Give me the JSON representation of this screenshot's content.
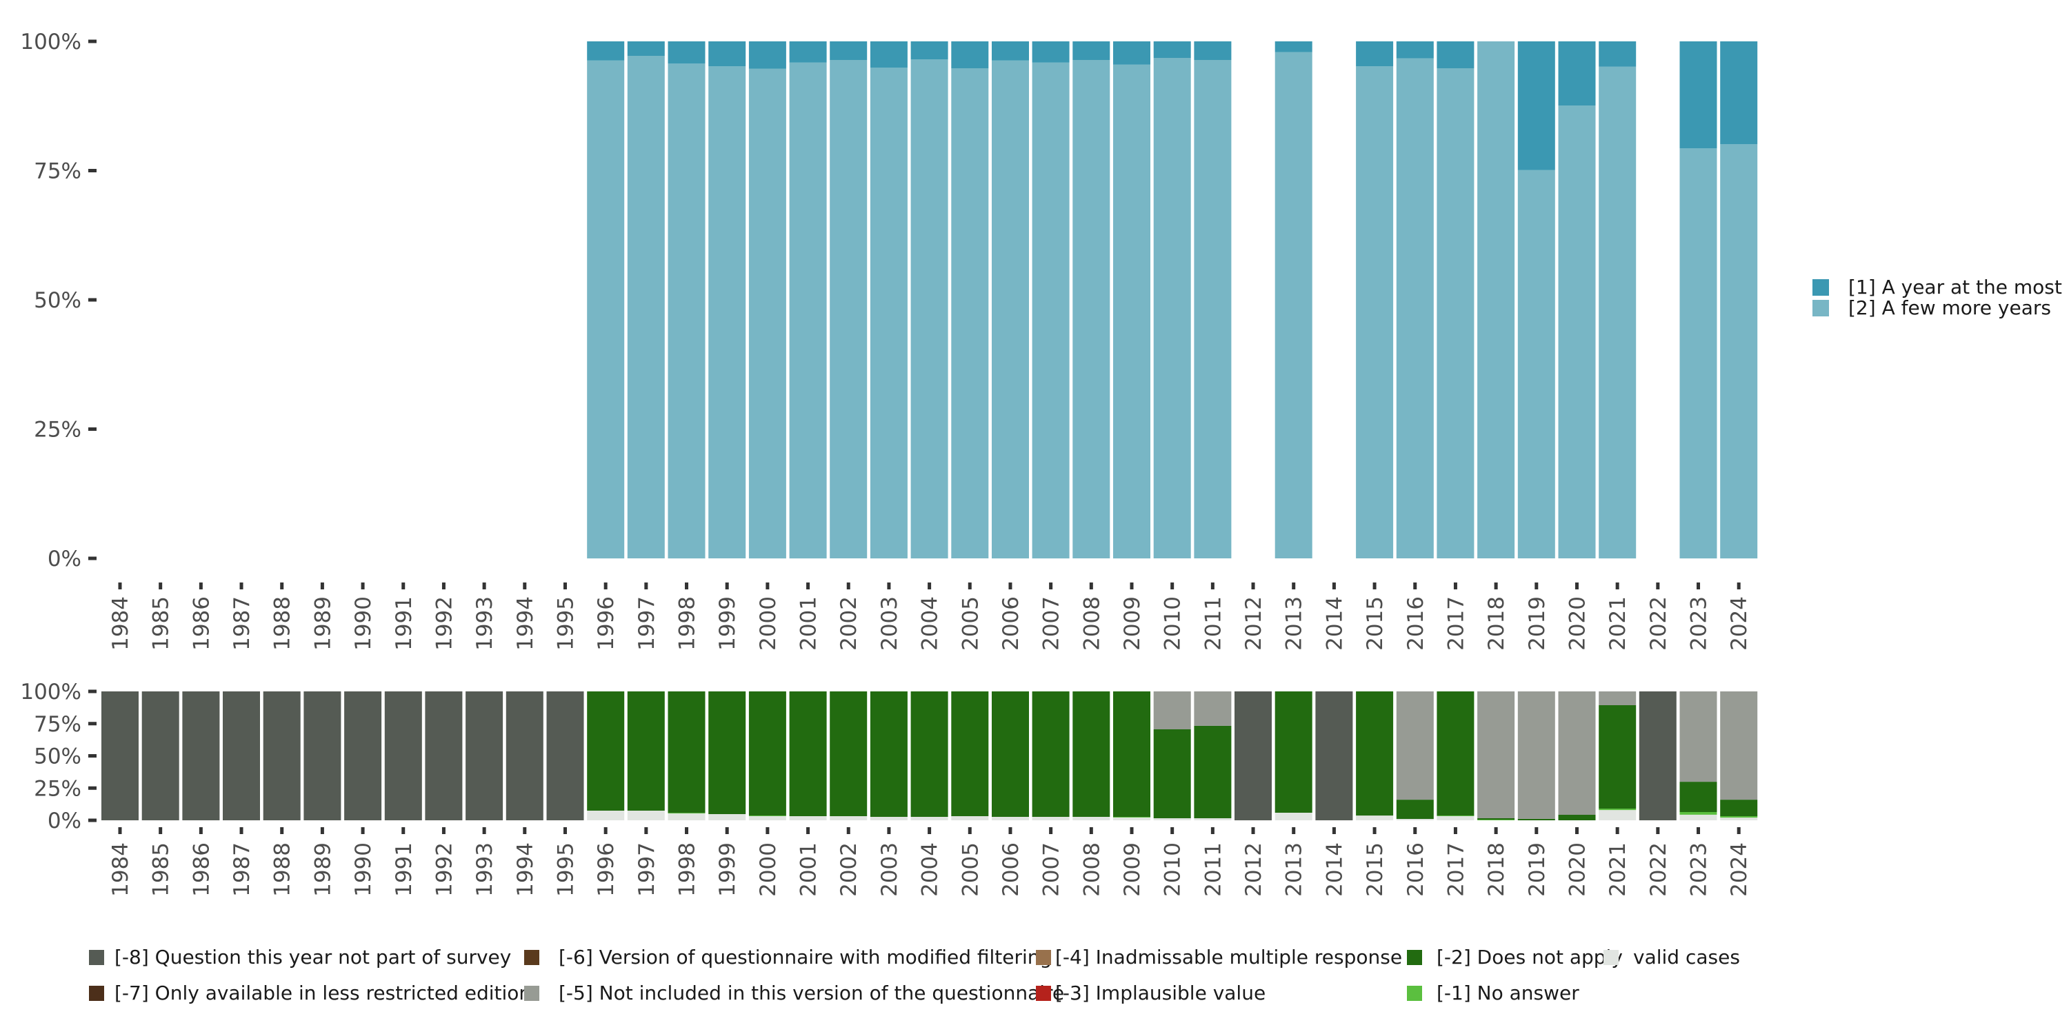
{
  "chart_data": [
    {
      "id": "top",
      "type": "bar",
      "stacked": true,
      "normalized": true,
      "title": "",
      "xlabel": "",
      "ylabel": "",
      "ylim": [
        0,
        100
      ],
      "yticks": [
        "0%",
        "25%",
        "50%",
        "75%",
        "100%"
      ],
      "ytick_values": [
        0,
        25,
        50,
        75,
        100
      ],
      "grid": false,
      "legend_position": "right",
      "categories": [
        "1984",
        "1985",
        "1986",
        "1987",
        "1988",
        "1989",
        "1990",
        "1991",
        "1992",
        "1993",
        "1994",
        "1995",
        "1996",
        "1997",
        "1998",
        "1999",
        "2000",
        "2001",
        "2002",
        "2003",
        "2004",
        "2005",
        "2006",
        "2007",
        "2008",
        "2009",
        "2010",
        "2011",
        "2012",
        "2013",
        "2014",
        "2015",
        "2016",
        "2017",
        "2018",
        "2019",
        "2020",
        "2021",
        "2022",
        "2023",
        "2024"
      ],
      "series": [
        {
          "name": "[2] A few more years",
          "color": "#78b6c5",
          "values": [
            null,
            null,
            null,
            null,
            null,
            null,
            null,
            null,
            null,
            null,
            null,
            null,
            96.3,
            97.2,
            95.7,
            95.2,
            94.7,
            95.9,
            96.4,
            94.9,
            96.5,
            94.8,
            96.3,
            95.9,
            96.4,
            95.5,
            96.8,
            96.4,
            null,
            97.9,
            null,
            95.2,
            96.7,
            94.8,
            100,
            75.1,
            87.6,
            95.1,
            null,
            79.3,
            80.1
          ]
        },
        {
          "name": "[1] A year at the most",
          "color": "#3b98b2",
          "values": [
            null,
            null,
            null,
            null,
            null,
            null,
            null,
            null,
            null,
            null,
            null,
            null,
            3.7,
            2.8,
            4.3,
            4.8,
            5.3,
            4.1,
            3.6,
            5.1,
            3.5,
            5.2,
            3.7,
            4.1,
            3.6,
            4.5,
            3.2,
            3.6,
            null,
            2.1,
            null,
            4.8,
            3.3,
            5.2,
            0,
            24.9,
            12.4,
            4.9,
            null,
            20.7,
            19.9
          ]
        }
      ],
      "legend": [
        {
          "label": "[1] A year at the most",
          "color": "#3b98b2"
        },
        {
          "label": "[2] A few more years",
          "color": "#78b6c5"
        }
      ]
    },
    {
      "id": "bottom",
      "type": "bar",
      "stacked": true,
      "normalized": true,
      "title": "",
      "xlabel": "",
      "ylabel": "",
      "ylim": [
        0,
        100
      ],
      "yticks": [
        "0%",
        "25%",
        "50%",
        "75%",
        "100%"
      ],
      "ytick_values": [
        0,
        25,
        50,
        75,
        100
      ],
      "grid": false,
      "legend_position": "bottom",
      "categories": [
        "1984",
        "1985",
        "1986",
        "1987",
        "1988",
        "1989",
        "1990",
        "1991",
        "1992",
        "1993",
        "1994",
        "1995",
        "1996",
        "1997",
        "1998",
        "1999",
        "2000",
        "2001",
        "2002",
        "2003",
        "2004",
        "2005",
        "2006",
        "2007",
        "2008",
        "2009",
        "2010",
        "2011",
        "2012",
        "2013",
        "2014",
        "2015",
        "2016",
        "2017",
        "2018",
        "2019",
        "2020",
        "2021",
        "2022",
        "2023",
        "2024"
      ],
      "series": [
        {
          "name": "valid cases",
          "color": "#e1e5e1",
          "values": [
            0,
            0,
            0,
            0,
            0,
            0,
            0,
            0,
            0,
            0,
            0,
            0,
            7.5,
            7.5,
            5.3,
            4.8,
            3.2,
            3.2,
            3.2,
            2.7,
            2.7,
            3.2,
            2.7,
            2.7,
            2.7,
            2.1,
            1.6,
            1.6,
            0,
            5.9,
            0,
            3.7,
            1.1,
            3.2,
            0,
            0,
            0,
            8.0,
            0,
            4.3,
            2.1
          ]
        },
        {
          "name": "[-1] No answer",
          "color": "#5bbf3f",
          "values": [
            0,
            0,
            0,
            0,
            0,
            0,
            0,
            0,
            0,
            0,
            0,
            0,
            0,
            0,
            0.5,
            0,
            0.5,
            0,
            0,
            0,
            0,
            0,
            0,
            0,
            0,
            0.5,
            0,
            0,
            0,
            0,
            0,
            0,
            0,
            0.5,
            0.5,
            0,
            0,
            1.1,
            0,
            2.1,
            1.1
          ]
        },
        {
          "name": "[-2] Does not apply",
          "color": "#226b10",
          "values": [
            0,
            0,
            0,
            0,
            0,
            0,
            0,
            0,
            0,
            0,
            0,
            0,
            92.5,
            92.5,
            94.2,
            95.2,
            96.3,
            96.8,
            96.8,
            97.3,
            97.3,
            96.8,
            97.3,
            97.3,
            97.3,
            97.4,
            69.0,
            71.7,
            0,
            94.1,
            0,
            96.3,
            14.9,
            96.3,
            1.1,
            1.1,
            4.3,
            80.2,
            0,
            23.5,
            12.8
          ]
        },
        {
          "name": "[-5] Not included in this version of the questionnaire",
          "color": "#979b94",
          "values": [
            0,
            0,
            0,
            0,
            0,
            0,
            0,
            0,
            0,
            0,
            0,
            0,
            0,
            0,
            0,
            0,
            0,
            0,
            0,
            0,
            0,
            0,
            0,
            0,
            0,
            0,
            29.4,
            26.7,
            0,
            0,
            0,
            0,
            84.0,
            0,
            98.4,
            98.9,
            95.7,
            10.7,
            0,
            70.1,
            84.0
          ]
        },
        {
          "name": "[-8] Question this year not part of survey",
          "color": "#555b54",
          "values": [
            100,
            100,
            100,
            100,
            100,
            100,
            100,
            100,
            100,
            100,
            100,
            100,
            0,
            0,
            0,
            0,
            0,
            0,
            0,
            0,
            0,
            0,
            0,
            0,
            0,
            0,
            0,
            0,
            100,
            0,
            100,
            0,
            0,
            0,
            0,
            0,
            0,
            0,
            100,
            0,
            0
          ]
        }
      ],
      "legend": [
        {
          "label": "[-8] Question this year not part of survey",
          "color": "#555b54"
        },
        {
          "label": "[-7] Only available in less restricted edition",
          "color": "#4c2f1a"
        },
        {
          "label": "[-6] Version of questionnaire with modified filtering",
          "color": "#5a3a1d"
        },
        {
          "label": "[-5] Not included in this version of the questionnaire",
          "color": "#979b94"
        },
        {
          "label": "[-4] Inadmissable multiple response",
          "color": "#98714c"
        },
        {
          "label": "[-3] Implausible value",
          "color": "#b5221c"
        },
        {
          "label": "[-2] Does not apply",
          "color": "#226b10"
        },
        {
          "label": "[-1] No answer",
          "color": "#5bbf3f"
        },
        {
          "label": "valid cases",
          "color": "#e1e5e1"
        }
      ]
    }
  ]
}
